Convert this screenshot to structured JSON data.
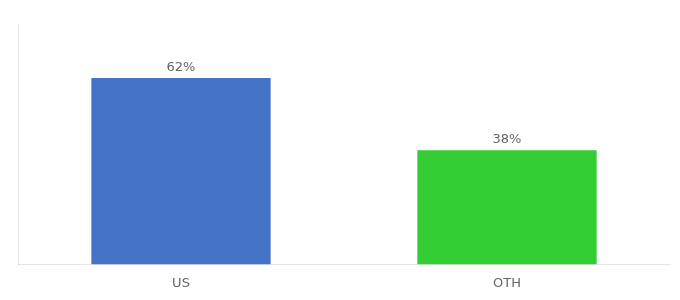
{
  "chart_data": {
    "type": "bar",
    "categories": [
      "US",
      "OTH"
    ],
    "values": [
      62,
      38
    ],
    "value_labels": [
      "62%",
      "38%"
    ],
    "colors": [
      "#4472c4",
      "#33cc33"
    ],
    "ylim": [
      0,
      80
    ],
    "data_labels": true,
    "tick_labels": "x",
    "grid": false
  }
}
